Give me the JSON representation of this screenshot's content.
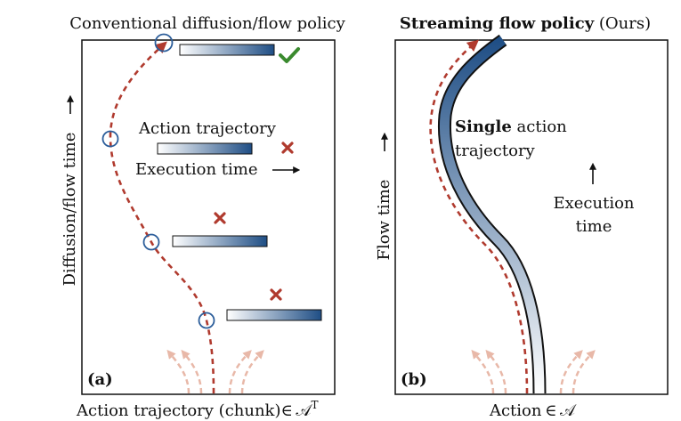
{
  "left_panel": {
    "title": "Conventional diffusion/flow policy",
    "y_axis_label": "Diffusion/flow time",
    "x_axis_label": "Action trajectory (chunk)∈𝓐ᵀ",
    "x_axis_label_main": "Action trajectory (chunk)",
    "x_axis_label_symbol": "∈ 𝒜",
    "x_axis_label_sup": "T",
    "panel_tag": "(a)",
    "legend_line1": "Action trajectory",
    "legend_line2": "Execution time",
    "check_icon": "check-icon",
    "cross_icon": "cross-icon"
  },
  "right_panel": {
    "title_bold": "Streaming flow policy",
    "title_rest": " (Ours)",
    "y_axis_label": "Flow time",
    "x_axis_label_main": "Action",
    "x_axis_label_symbol": " ∈ 𝒜",
    "panel_tag": "(b)",
    "annotation_bold": "Single",
    "annotation_rest_1": " action",
    "annotation_rest_2": "trajectory",
    "execution_label_1": "Execution",
    "execution_label_2": "time"
  },
  "colors": {
    "dashed_path": "#b03a2e",
    "circle": "#2b5d9a",
    "bar_dark": "#1f4e85",
    "bar_light": "#ffffff",
    "check": "#3a8a2e",
    "cross": "#b03a2e",
    "noise_arrows": "#e8b8a8"
  }
}
